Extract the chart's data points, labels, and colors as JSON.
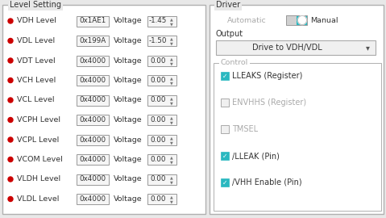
{
  "bg_color": "#e8e8e8",
  "panel_color": "#ffffff",
  "border_color": "#b0b0b0",
  "title_color": "#333333",
  "label_color": "#333333",
  "dot_color": "#cc0000",
  "box_bg": "#f5f5f5",
  "box_border": "#999999",
  "checked_color": "#2ab8c0",
  "disabled_color": "#aaaaaa",
  "toggle_left_color": "#cccccc",
  "toggle_right_color": "#2ab8c0",
  "left_title": "Level Setting",
  "right_title": "Driver",
  "voltage_label": "Voltage",
  "rows": [
    {
      "label": "VDH Level",
      "hex": "0x1AE1",
      "voltage": "-1.45"
    },
    {
      "label": "VDL Level",
      "hex": "0x199A",
      "voltage": "-1.50"
    },
    {
      "label": "VDT Level",
      "hex": "0x4000",
      "voltage": "0.00"
    },
    {
      "label": "VCH Level",
      "hex": "0x4000",
      "voltage": "0.00"
    },
    {
      "label": "VCL Level",
      "hex": "0x4000",
      "voltage": "0.00"
    },
    {
      "label": "VCPH Level",
      "hex": "0x4000",
      "voltage": "0.00"
    },
    {
      "label": "VCPL Level",
      "hex": "0x4000",
      "voltage": "0.00"
    },
    {
      "label": "VCOM Level",
      "hex": "0x4000",
      "voltage": "0.00"
    },
    {
      "label": "VLDH Level",
      "hex": "0x4000",
      "voltage": "0.00"
    },
    {
      "label": "VLDL Level",
      "hex": "0x4000",
      "voltage": "0.00"
    }
  ],
  "auto_label": "Automatic",
  "manual_label": "Manual",
  "output_label": "Output",
  "dropdown_label": "Drive to VDH/VDL",
  "control_label": "Control",
  "checkboxes": [
    {
      "label": "LLEAKS (Register)",
      "checked": true
    },
    {
      "label": "ENVHHS (Register)",
      "checked": false
    },
    {
      "label": "TMSEL",
      "checked": false
    },
    {
      "label": "/LLEAK (Pin)",
      "checked": true
    },
    {
      "label": "/VHH Enable (Pin)",
      "checked": true
    }
  ]
}
